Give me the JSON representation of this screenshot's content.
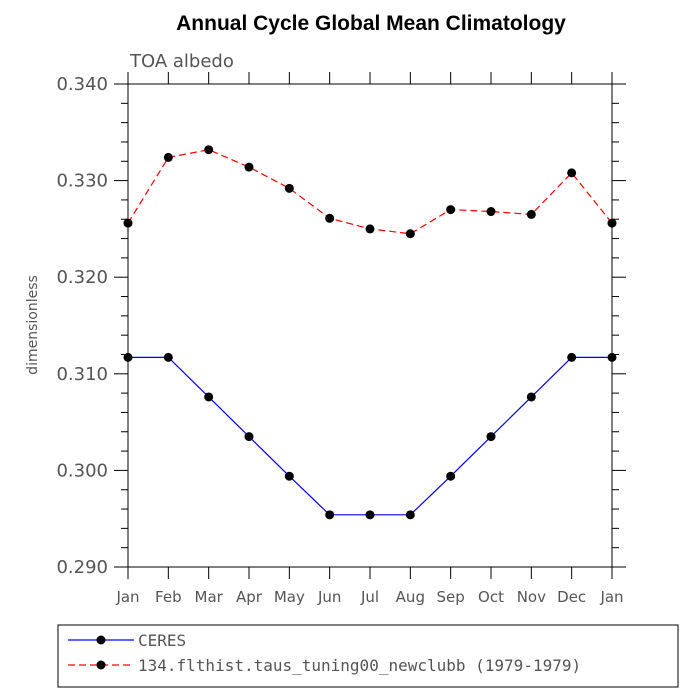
{
  "chart_data": {
    "type": "line",
    "title": "Annual Cycle Global Mean Climatology",
    "subtitle": "TOA albedo",
    "ylabel": "dimensionless",
    "xlabel": "",
    "categories": [
      "Jan",
      "Feb",
      "Mar",
      "Apr",
      "May",
      "Jun",
      "Jul",
      "Aug",
      "Sep",
      "Oct",
      "Nov",
      "Dec",
      "Jan"
    ],
    "ylim": [
      0.29,
      0.34
    ],
    "yticks": [
      0.29,
      0.3,
      0.31,
      0.32,
      0.33,
      0.34
    ],
    "ytick_labels": [
      "0.290",
      "0.300",
      "0.310",
      "0.320",
      "0.330",
      "0.340"
    ],
    "legend_placement": "bottom",
    "series": [
      {
        "name": "CERES",
        "color": "#0000ff",
        "line_style": "solid",
        "marker": "filled-circle",
        "values": [
          0.3117,
          0.3117,
          0.3076,
          0.3035,
          0.2994,
          0.2954,
          0.2954,
          0.2954,
          0.2994,
          0.3035,
          0.3076,
          0.3117,
          0.3117
        ]
      },
      {
        "name": "134.flthist.taus_tuning00_newclubb (1979-1979)",
        "color": "#ff0000",
        "line_style": "dashed",
        "marker": "filled-circle",
        "values": [
          0.3256,
          0.3324,
          0.3332,
          0.3314,
          0.3292,
          0.3261,
          0.325,
          0.3245,
          0.327,
          0.3268,
          0.3265,
          0.3308,
          0.3256
        ]
      }
    ]
  }
}
